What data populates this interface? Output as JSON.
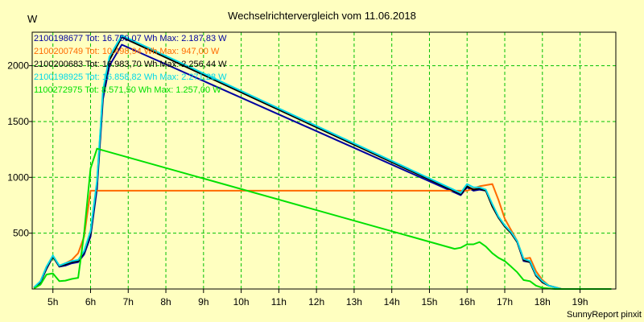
{
  "chart_data": {
    "type": "line",
    "title": "Wechselrichtervergleich vom 11.06.2018",
    "ylabel": "W",
    "xlabel": "",
    "credit": "SunnyReport pinxit",
    "x_unit": "hour",
    "xlim": [
      4.45,
      19.95
    ],
    "ylim": [
      0,
      2300
    ],
    "x_ticks": [
      {
        "value": 5,
        "label": "5h"
      },
      {
        "value": 6,
        "label": "6h"
      },
      {
        "value": 7,
        "label": "7h"
      },
      {
        "value": 8,
        "label": "8h"
      },
      {
        "value": 9,
        "label": "9h"
      },
      {
        "value": 10,
        "label": "10h"
      },
      {
        "value": 11,
        "label": "11h"
      },
      {
        "value": 12,
        "label": "12h"
      },
      {
        "value": 13,
        "label": "13h"
      },
      {
        "value": 14,
        "label": "14h"
      },
      {
        "value": 15,
        "label": "15h"
      },
      {
        "value": 16,
        "label": "16h"
      },
      {
        "value": 17,
        "label": "17h"
      },
      {
        "value": 18,
        "label": "18h"
      },
      {
        "value": 19,
        "label": "19h"
      }
    ],
    "y_ticks": [
      {
        "value": 500,
        "label": "500"
      },
      {
        "value": 1000,
        "label": "1000"
      },
      {
        "value": 1500,
        "label": "1500"
      },
      {
        "value": 2000,
        "label": "2000"
      }
    ],
    "grid": true,
    "legend_position": "top-left",
    "series": [
      {
        "name": "2100198677 Tot: 16.750,07 Wh Max: 2.187,83 W",
        "color": "#0000a0",
        "points": [
          [
            4.5,
            10
          ],
          [
            4.67,
            60
          ],
          [
            4.83,
            180
          ],
          [
            5.0,
            290
          ],
          [
            5.17,
            200
          ],
          [
            5.33,
            210
          ],
          [
            5.5,
            230
          ],
          [
            5.67,
            240
          ],
          [
            5.83,
            310
          ],
          [
            6.0,
            470
          ],
          [
            6.17,
            900
          ],
          [
            6.33,
            1700
          ],
          [
            6.5,
            2000
          ],
          [
            6.83,
            2188
          ],
          [
            15.83,
            840
          ],
          [
            16.0,
            910
          ],
          [
            16.17,
            880
          ],
          [
            16.33,
            890
          ],
          [
            16.5,
            880
          ],
          [
            16.67,
            740
          ],
          [
            16.83,
            640
          ],
          [
            17.0,
            560
          ],
          [
            17.17,
            500
          ],
          [
            17.33,
            420
          ],
          [
            17.5,
            250
          ],
          [
            17.67,
            240
          ],
          [
            17.83,
            120
          ],
          [
            18.0,
            60
          ],
          [
            18.17,
            30
          ],
          [
            18.5,
            0
          ],
          [
            19.83,
            0
          ]
        ]
      },
      {
        "name": "2100200749 Tot: 10.498,94 Wh Max: 947,00 W",
        "color": "#ff6a00",
        "points": [
          [
            4.5,
            10
          ],
          [
            4.67,
            70
          ],
          [
            4.83,
            200
          ],
          [
            5.0,
            290
          ],
          [
            5.17,
            210
          ],
          [
            5.33,
            230
          ],
          [
            5.5,
            260
          ],
          [
            5.67,
            320
          ],
          [
            5.83,
            470
          ],
          [
            6.0,
            880
          ],
          [
            16.0,
            880
          ],
          [
            16.33,
            920
          ],
          [
            16.67,
            940
          ],
          [
            16.83,
            800
          ],
          [
            17.0,
            630
          ],
          [
            17.33,
            430
          ],
          [
            17.5,
            270
          ],
          [
            17.67,
            280
          ],
          [
            17.83,
            160
          ],
          [
            18.0,
            80
          ],
          [
            18.17,
            30
          ],
          [
            18.5,
            0
          ],
          [
            19.83,
            0
          ]
        ]
      },
      {
        "name": "2100200683 Tot: 16.983,70 Wh Max: 2.256,44 W",
        "color": "#000000",
        "points": [
          [
            4.5,
            10
          ],
          [
            4.67,
            65
          ],
          [
            4.83,
            190
          ],
          [
            5.0,
            290
          ],
          [
            5.17,
            205
          ],
          [
            5.33,
            220
          ],
          [
            5.5,
            240
          ],
          [
            5.67,
            250
          ],
          [
            5.83,
            330
          ],
          [
            6.0,
            500
          ],
          [
            6.17,
            950
          ],
          [
            6.33,
            1750
          ],
          [
            6.5,
            2050
          ],
          [
            6.83,
            2256
          ],
          [
            15.83,
            850
          ],
          [
            16.0,
            920
          ],
          [
            16.17,
            890
          ],
          [
            16.33,
            900
          ],
          [
            16.5,
            880
          ],
          [
            16.67,
            740
          ],
          [
            16.83,
            640
          ],
          [
            17.0,
            560
          ],
          [
            17.17,
            500
          ],
          [
            17.33,
            420
          ],
          [
            17.5,
            260
          ],
          [
            17.67,
            240
          ],
          [
            17.83,
            120
          ],
          [
            18.0,
            60
          ],
          [
            18.17,
            30
          ],
          [
            18.5,
            0
          ],
          [
            19.83,
            0
          ]
        ]
      },
      {
        "name": "2100198925 Tot: 16.858,82 Wh Max: 2.271,28 W",
        "color": "#00d8e8",
        "points": [
          [
            4.5,
            15
          ],
          [
            4.67,
            70
          ],
          [
            4.83,
            200
          ],
          [
            5.0,
            300
          ],
          [
            5.17,
            210
          ],
          [
            5.33,
            230
          ],
          [
            5.5,
            250
          ],
          [
            5.67,
            260
          ],
          [
            5.83,
            340
          ],
          [
            6.0,
            520
          ],
          [
            6.17,
            970
          ],
          [
            6.33,
            1780
          ],
          [
            6.5,
            2080
          ],
          [
            6.83,
            2271
          ],
          [
            15.83,
            860
          ],
          [
            16.0,
            940
          ],
          [
            16.17,
            910
          ],
          [
            16.33,
            910
          ],
          [
            16.5,
            890
          ],
          [
            16.67,
            760
          ],
          [
            16.83,
            650
          ],
          [
            17.0,
            570
          ],
          [
            17.17,
            510
          ],
          [
            17.33,
            430
          ],
          [
            17.5,
            270
          ],
          [
            17.67,
            250
          ],
          [
            17.83,
            130
          ],
          [
            18.0,
            70
          ],
          [
            18.17,
            30
          ],
          [
            18.5,
            0
          ],
          [
            19.83,
            0
          ]
        ]
      },
      {
        "name": "1100272975 Tot: 8.571,50 Wh Max: 1.257,00 W",
        "color": "#00e000",
        "points": [
          [
            4.5,
            5
          ],
          [
            4.67,
            40
          ],
          [
            4.83,
            130
          ],
          [
            5.0,
            140
          ],
          [
            5.17,
            70
          ],
          [
            5.33,
            75
          ],
          [
            5.5,
            90
          ],
          [
            5.67,
            100
          ],
          [
            5.83,
            500
          ],
          [
            6.0,
            1080
          ],
          [
            6.17,
            1257
          ],
          [
            15.67,
            360
          ],
          [
            15.83,
            370
          ],
          [
            16.0,
            400
          ],
          [
            16.17,
            400
          ],
          [
            16.33,
            420
          ],
          [
            16.5,
            380
          ],
          [
            16.67,
            320
          ],
          [
            16.83,
            280
          ],
          [
            17.0,
            250
          ],
          [
            17.17,
            200
          ],
          [
            17.33,
            150
          ],
          [
            17.5,
            80
          ],
          [
            17.67,
            70
          ],
          [
            17.83,
            30
          ],
          [
            18.0,
            10
          ],
          [
            18.33,
            0
          ],
          [
            19.83,
            0
          ]
        ]
      }
    ]
  }
}
